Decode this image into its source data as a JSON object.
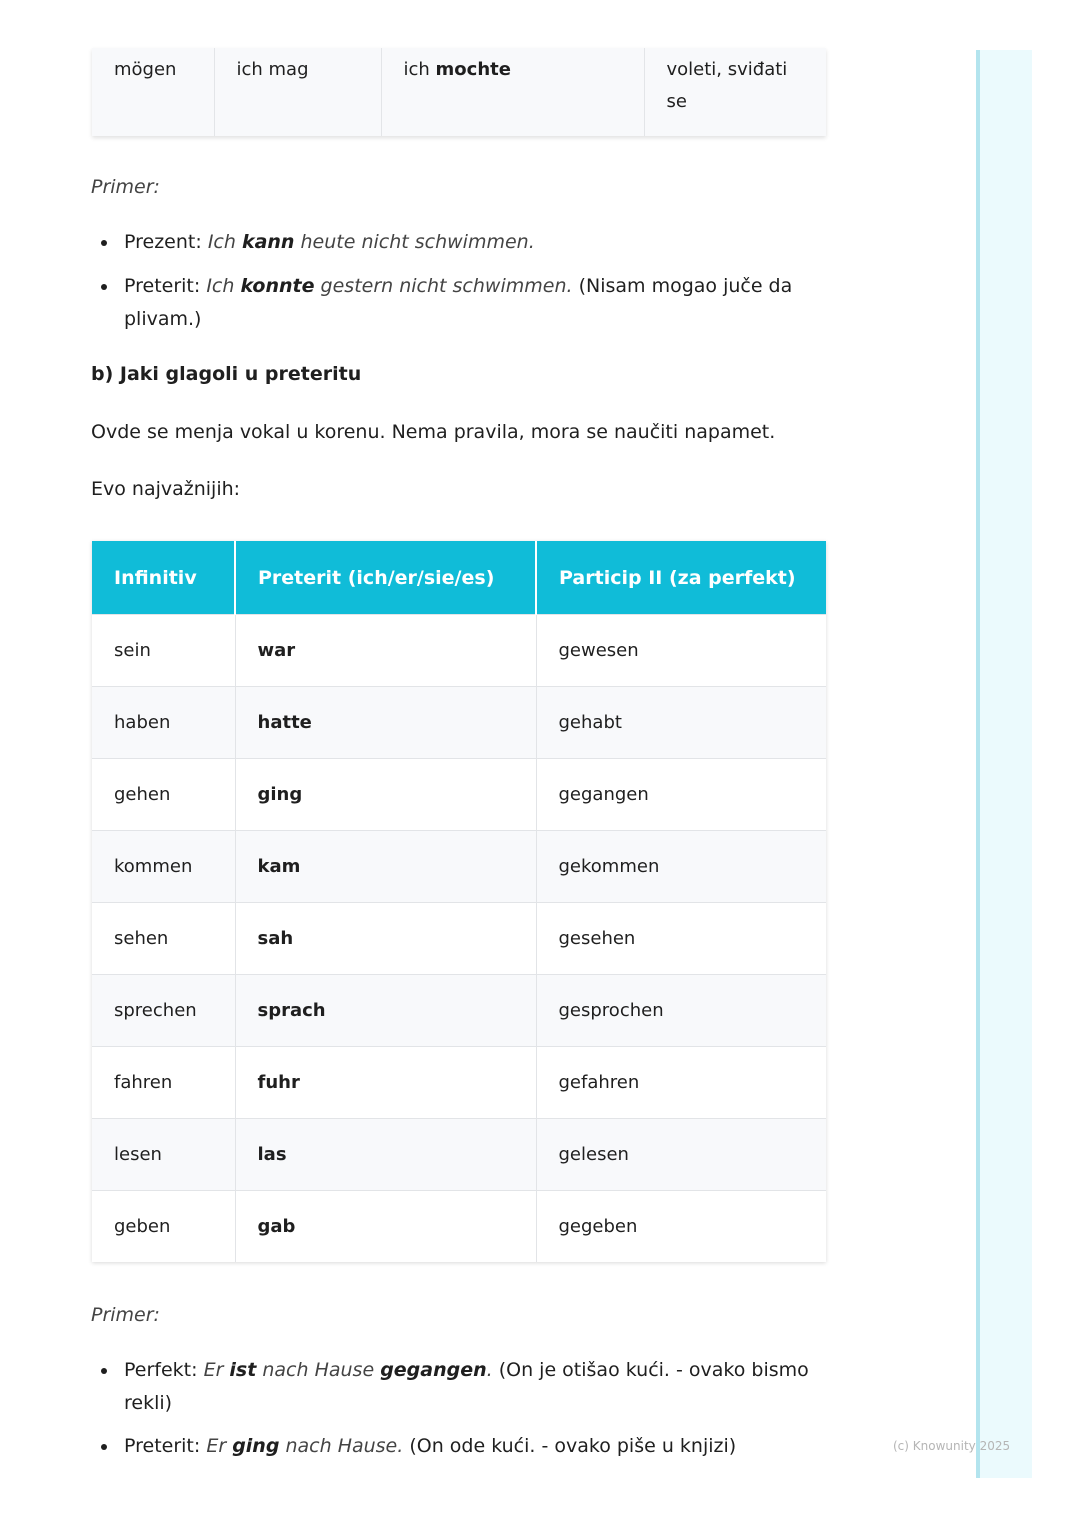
{
  "top_table": {
    "row": [
      "mögen",
      "ich mag",
      {
        "pre": "ich ",
        "bold": "mochte"
      },
      "voleti, sviđati se"
    ]
  },
  "example1": {
    "label": "Primer:",
    "items": [
      {
        "prefix": "Prezent: ",
        "i1": "Ich ",
        "b": "kann",
        "i2": " heute nicht schwimmen.",
        "tail": ""
      },
      {
        "prefix": "Preterit: ",
        "i1": "Ich ",
        "b": "konnte",
        "i2": " gestern nicht schwimmen.",
        "tail": " (Nisam mogao juče da plivam.)"
      }
    ]
  },
  "section": {
    "heading": "b) Jaki glagoli u preteritu",
    "para1": "Ovde se menja vokal u korenu. Nema pravila, mora se naučiti napamet.",
    "para2": "Evo najvažnijih:"
  },
  "verbs_table": {
    "header_color": "#10bcd8",
    "headers": [
      "Infinitiv",
      "Preterit (ich/er/sie/es)",
      "Particip II (za perfekt)"
    ],
    "rows": [
      [
        "sein",
        "war",
        "gewesen"
      ],
      [
        "haben",
        "hatte",
        "gehabt"
      ],
      [
        "gehen",
        "ging",
        "gegangen"
      ],
      [
        "kommen",
        "kam",
        "gekommen"
      ],
      [
        "sehen",
        "sah",
        "gesehen"
      ],
      [
        "sprechen",
        "sprach",
        "gesprochen"
      ],
      [
        "fahren",
        "fuhr",
        "gefahren"
      ],
      [
        "lesen",
        "las",
        "gelesen"
      ],
      [
        "geben",
        "gab",
        "gegeben"
      ]
    ]
  },
  "example2": {
    "label": "Primer:",
    "items": [
      {
        "prefix": "Perfekt: ",
        "i1": "Er ",
        "b1": "ist",
        "i2": " nach Hause ",
        "b2": "gegangen",
        "i3": ".",
        "tail": " (On je otišao kući. - ovako bismo rekli)"
      },
      {
        "prefix": "Preterit: ",
        "i1": "Er ",
        "b1": "ging",
        "i2": " nach Hause.",
        "b2": "",
        "i3": "",
        "tail": " (On ode kući. - ovako piše u knjizi)"
      }
    ]
  },
  "footer": {
    "copyright": "(c) Knowunity 2025"
  }
}
